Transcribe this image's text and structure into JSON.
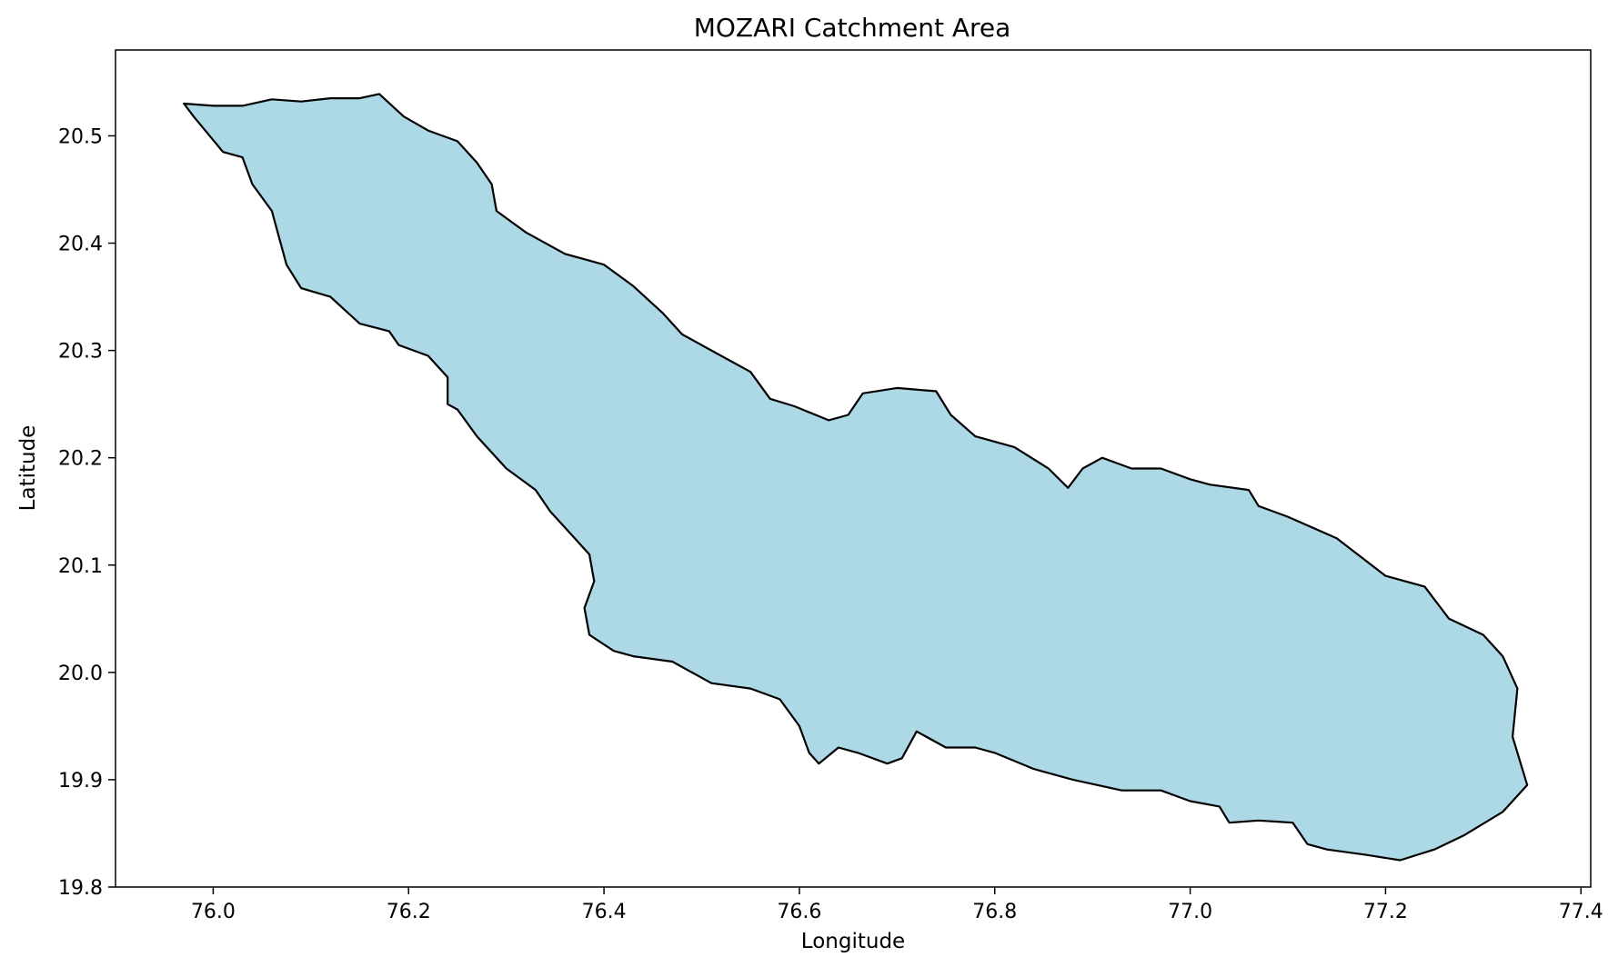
{
  "chart_data": {
    "type": "map",
    "title": "MOZARI Catchment Area",
    "xlabel": "Longitude",
    "ylabel": "Latitude",
    "xlim": [
      75.9,
      77.41
    ],
    "ylim": [
      19.8,
      20.58
    ],
    "xticks": [
      76.0,
      76.2,
      76.4,
      76.6,
      76.8,
      77.0,
      77.2,
      77.4
    ],
    "xtick_labels": [
      "76.0",
      "76.2",
      "76.4",
      "76.6",
      "76.8",
      "77.0",
      "77.2",
      "77.4"
    ],
    "yticks": [
      19.8,
      19.9,
      20.0,
      20.1,
      20.2,
      20.3,
      20.4,
      20.5
    ],
    "ytick_labels": [
      "19.8",
      "19.9",
      "20.0",
      "20.1",
      "20.2",
      "20.3",
      "20.4",
      "20.5"
    ],
    "grid": false,
    "fill_color": "#add8e6",
    "edge_color": "#000000",
    "boundary": [
      [
        75.97,
        20.53
      ],
      [
        76.0,
        20.528
      ],
      [
        76.03,
        20.528
      ],
      [
        76.06,
        20.534
      ],
      [
        76.09,
        20.532
      ],
      [
        76.12,
        20.535
      ],
      [
        76.15,
        20.535
      ],
      [
        76.17,
        20.539
      ],
      [
        76.195,
        20.518
      ],
      [
        76.22,
        20.505
      ],
      [
        76.25,
        20.495
      ],
      [
        76.27,
        20.475
      ],
      [
        76.285,
        20.455
      ],
      [
        76.29,
        20.43
      ],
      [
        76.32,
        20.41
      ],
      [
        76.36,
        20.39
      ],
      [
        76.4,
        20.38
      ],
      [
        76.43,
        20.36
      ],
      [
        76.46,
        20.335
      ],
      [
        76.48,
        20.315
      ],
      [
        76.51,
        20.3
      ],
      [
        76.55,
        20.28
      ],
      [
        76.57,
        20.255
      ],
      [
        76.595,
        20.248
      ],
      [
        76.63,
        20.235
      ],
      [
        76.65,
        20.24
      ],
      [
        76.665,
        20.26
      ],
      [
        76.7,
        20.265
      ],
      [
        76.74,
        20.262
      ],
      [
        76.755,
        20.24
      ],
      [
        76.78,
        20.22
      ],
      [
        76.82,
        20.21
      ],
      [
        76.855,
        20.19
      ],
      [
        76.875,
        20.172
      ],
      [
        76.89,
        20.19
      ],
      [
        76.91,
        20.2
      ],
      [
        76.94,
        20.19
      ],
      [
        76.97,
        20.19
      ],
      [
        77.0,
        20.18
      ],
      [
        77.02,
        20.175
      ],
      [
        77.06,
        20.17
      ],
      [
        77.07,
        20.155
      ],
      [
        77.1,
        20.145
      ],
      [
        77.15,
        20.125
      ],
      [
        77.2,
        20.09
      ],
      [
        77.24,
        20.08
      ],
      [
        77.265,
        20.05
      ],
      [
        77.3,
        20.035
      ],
      [
        77.32,
        20.015
      ],
      [
        77.335,
        19.985
      ],
      [
        77.33,
        19.94
      ],
      [
        77.345,
        19.895
      ],
      [
        77.32,
        19.87
      ],
      [
        77.28,
        19.848
      ],
      [
        77.25,
        19.835
      ],
      [
        77.215,
        19.825
      ],
      [
        77.18,
        19.83
      ],
      [
        77.14,
        19.835
      ],
      [
        77.12,
        19.84
      ],
      [
        77.105,
        19.86
      ],
      [
        77.07,
        19.862
      ],
      [
        77.04,
        19.86
      ],
      [
        77.03,
        19.875
      ],
      [
        77.0,
        19.88
      ],
      [
        76.97,
        19.89
      ],
      [
        76.93,
        19.89
      ],
      [
        76.88,
        19.9
      ],
      [
        76.84,
        19.91
      ],
      [
        76.8,
        19.925
      ],
      [
        76.78,
        19.93
      ],
      [
        76.75,
        19.93
      ],
      [
        76.72,
        19.945
      ],
      [
        76.705,
        19.92
      ],
      [
        76.69,
        19.915
      ],
      [
        76.66,
        19.925
      ],
      [
        76.64,
        19.93
      ],
      [
        76.62,
        19.915
      ],
      [
        76.61,
        19.925
      ],
      [
        76.6,
        19.95
      ],
      [
        76.58,
        19.975
      ],
      [
        76.55,
        19.985
      ],
      [
        76.51,
        19.99
      ],
      [
        76.47,
        20.01
      ],
      [
        76.43,
        20.015
      ],
      [
        76.41,
        20.02
      ],
      [
        76.385,
        20.035
      ],
      [
        76.38,
        20.06
      ],
      [
        76.39,
        20.085
      ],
      [
        76.385,
        20.11
      ],
      [
        76.36,
        20.135
      ],
      [
        76.345,
        20.15
      ],
      [
        76.33,
        20.17
      ],
      [
        76.3,
        20.19
      ],
      [
        76.27,
        20.22
      ],
      [
        76.25,
        20.245
      ],
      [
        76.24,
        20.25
      ],
      [
        76.24,
        20.275
      ],
      [
        76.22,
        20.295
      ],
      [
        76.19,
        20.305
      ],
      [
        76.18,
        20.318
      ],
      [
        76.15,
        20.325
      ],
      [
        76.12,
        20.35
      ],
      [
        76.09,
        20.358
      ],
      [
        76.075,
        20.38
      ],
      [
        76.06,
        20.43
      ],
      [
        76.04,
        20.455
      ],
      [
        76.03,
        20.48
      ],
      [
        76.01,
        20.485
      ],
      [
        75.98,
        20.518
      ],
      [
        75.97,
        20.53
      ]
    ]
  }
}
